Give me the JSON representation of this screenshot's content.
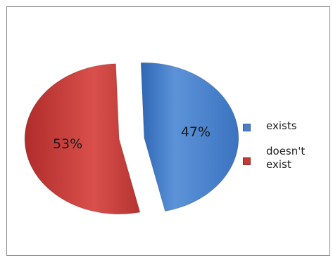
{
  "chart_data": {
    "type": "pie",
    "title": "",
    "slices": [
      {
        "label": "exists",
        "value": 47,
        "data_label": "47%",
        "color": "#4a7fc8"
      },
      {
        "label": "doesn't\nexist",
        "value": 53,
        "data_label": "53%",
        "color": "#c23a38"
      }
    ],
    "exploded": true,
    "legend_position": "right"
  }
}
